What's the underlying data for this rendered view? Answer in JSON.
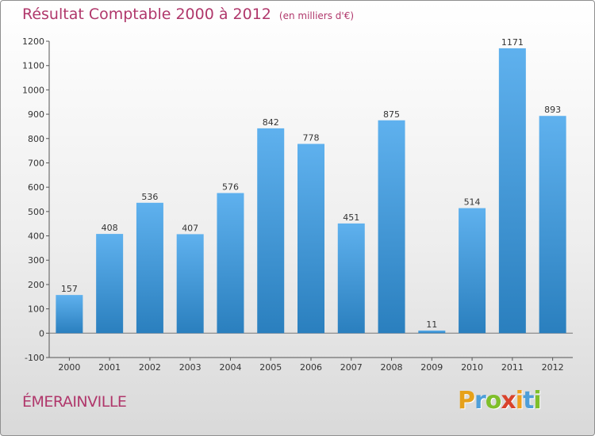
{
  "title": "Résultat Comptable 2000 à 2012",
  "subtitle": "(en milliers d'€)",
  "commune": "ÉMERAINVILLE",
  "logo": {
    "letters": [
      "P",
      "r",
      "o",
      "x",
      "i",
      "t",
      "i"
    ],
    "colors": [
      "#e6a11a",
      "#4f9fd9",
      "#7fbf2a",
      "#d9432c",
      "#f0a11c",
      "#4f9fd9",
      "#7fbf2a"
    ]
  },
  "colors": {
    "bar_light": "#5fb1ee",
    "bar_dark": "#2a7fbe",
    "title": "#b0376b"
  },
  "chart_data": {
    "type": "bar",
    "categories": [
      "2000",
      "2001",
      "2002",
      "2003",
      "2004",
      "2005",
      "2006",
      "2007",
      "2008",
      "2009",
      "2010",
      "2011",
      "2012"
    ],
    "values": [
      157,
      408,
      536,
      407,
      576,
      842,
      778,
      451,
      875,
      11,
      514,
      1171,
      893
    ],
    "ylim": [
      -100,
      1200
    ],
    "yticks": [
      -100,
      0,
      100,
      200,
      300,
      400,
      500,
      600,
      700,
      800,
      900,
      1000,
      1100,
      1200
    ],
    "grid": false
  }
}
